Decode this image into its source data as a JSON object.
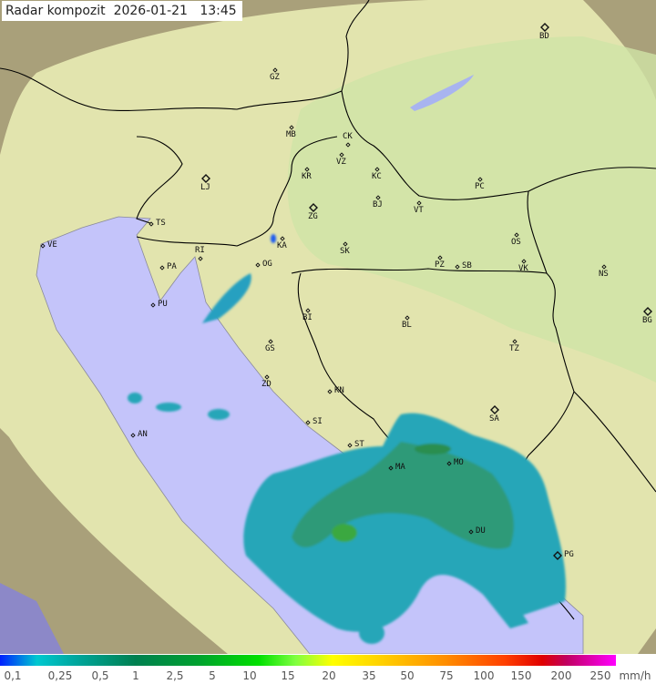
{
  "title": {
    "label": "Radar kompozit",
    "date": "2026-01-21",
    "time": "13:45"
  },
  "colors": {
    "sea": "#c4c4fa",
    "land_coverage": "#dfe6a8",
    "border": "#000000",
    "precip_light": "#1f9dc8",
    "precip_mid": "#2aa890",
    "precip_heavy": "#3f8f3f"
  },
  "cities": [
    {
      "code": "BD",
      "capital": true
    },
    {
      "code": "GZ"
    },
    {
      "code": "MB"
    },
    {
      "code": "CK"
    },
    {
      "code": "VZ"
    },
    {
      "code": "KR"
    },
    {
      "code": "KC"
    },
    {
      "code": "PC"
    },
    {
      "code": "LJ",
      "capital": true
    },
    {
      "code": "ZG",
      "capital": true
    },
    {
      "code": "BJ"
    },
    {
      "code": "VT"
    },
    {
      "code": "TS"
    },
    {
      "code": "VE"
    },
    {
      "code": "RI"
    },
    {
      "code": "KA"
    },
    {
      "code": "SK"
    },
    {
      "code": "OS"
    },
    {
      "code": "PA"
    },
    {
      "code": "OG"
    },
    {
      "code": "PZ"
    },
    {
      "code": "SB"
    },
    {
      "code": "VK"
    },
    {
      "code": "NS"
    },
    {
      "code": "PU"
    },
    {
      "code": "BI"
    },
    {
      "code": "BL"
    },
    {
      "code": "BG",
      "capital": true
    },
    {
      "code": "GS"
    },
    {
      "code": "TZ"
    },
    {
      "code": "ZD"
    },
    {
      "code": "KN"
    },
    {
      "code": "SA",
      "capital": true
    },
    {
      "code": "SI"
    },
    {
      "code": "AN"
    },
    {
      "code": "ST"
    },
    {
      "code": "MA"
    },
    {
      "code": "MO"
    },
    {
      "code": "DU"
    },
    {
      "code": "PG",
      "capital": true
    }
  ],
  "legend": {
    "labels": [
      "0,1",
      "0,25",
      "0,5",
      "1",
      "2,5",
      "5",
      "10",
      "15",
      "20",
      "35",
      "50",
      "75",
      "100",
      "150",
      "200",
      "250"
    ],
    "unit": "mm/h"
  }
}
